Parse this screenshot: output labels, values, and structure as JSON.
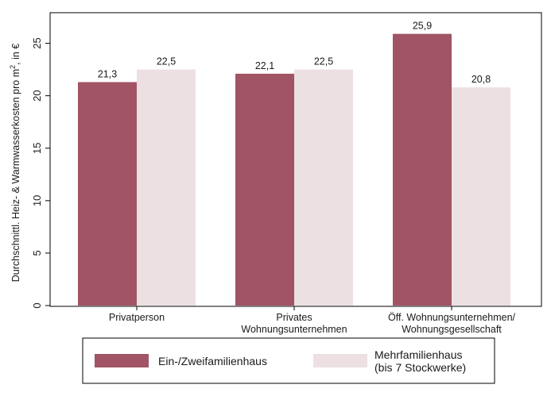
{
  "chart_data": {
    "type": "bar",
    "categories": [
      [
        "Privatperson"
      ],
      [
        "Privates",
        "Wohnungsunternehmen"
      ],
      [
        "Öff. Wohnungsunternehmen/",
        "Wohnungsgesellschaft"
      ]
    ],
    "series": [
      {
        "name": "Ein-/Zweifamilienhaus",
        "color": "#a05464",
        "values": [
          21.3,
          22.1,
          25.9
        ],
        "labels": [
          "21,3",
          "22,1",
          "25,9"
        ]
      },
      {
        "name": [
          "Mehrfamilienhaus",
          "(bis 7 Stockwerke)"
        ],
        "color": "#ece0e2",
        "values": [
          22.5,
          22.5,
          20.8
        ],
        "labels": [
          "22,5",
          "22,5",
          "20,8"
        ]
      }
    ],
    "ylabel": {
      "before": "Durchschnittl. Heiz- & Warmwasserkosten pro m",
      "sup": "2",
      "after": ", in €"
    },
    "yticks": [
      0,
      5,
      10,
      15,
      20,
      25
    ],
    "ylim": [
      0,
      27.5
    ],
    "grid": false,
    "legend_position": "bottom"
  }
}
